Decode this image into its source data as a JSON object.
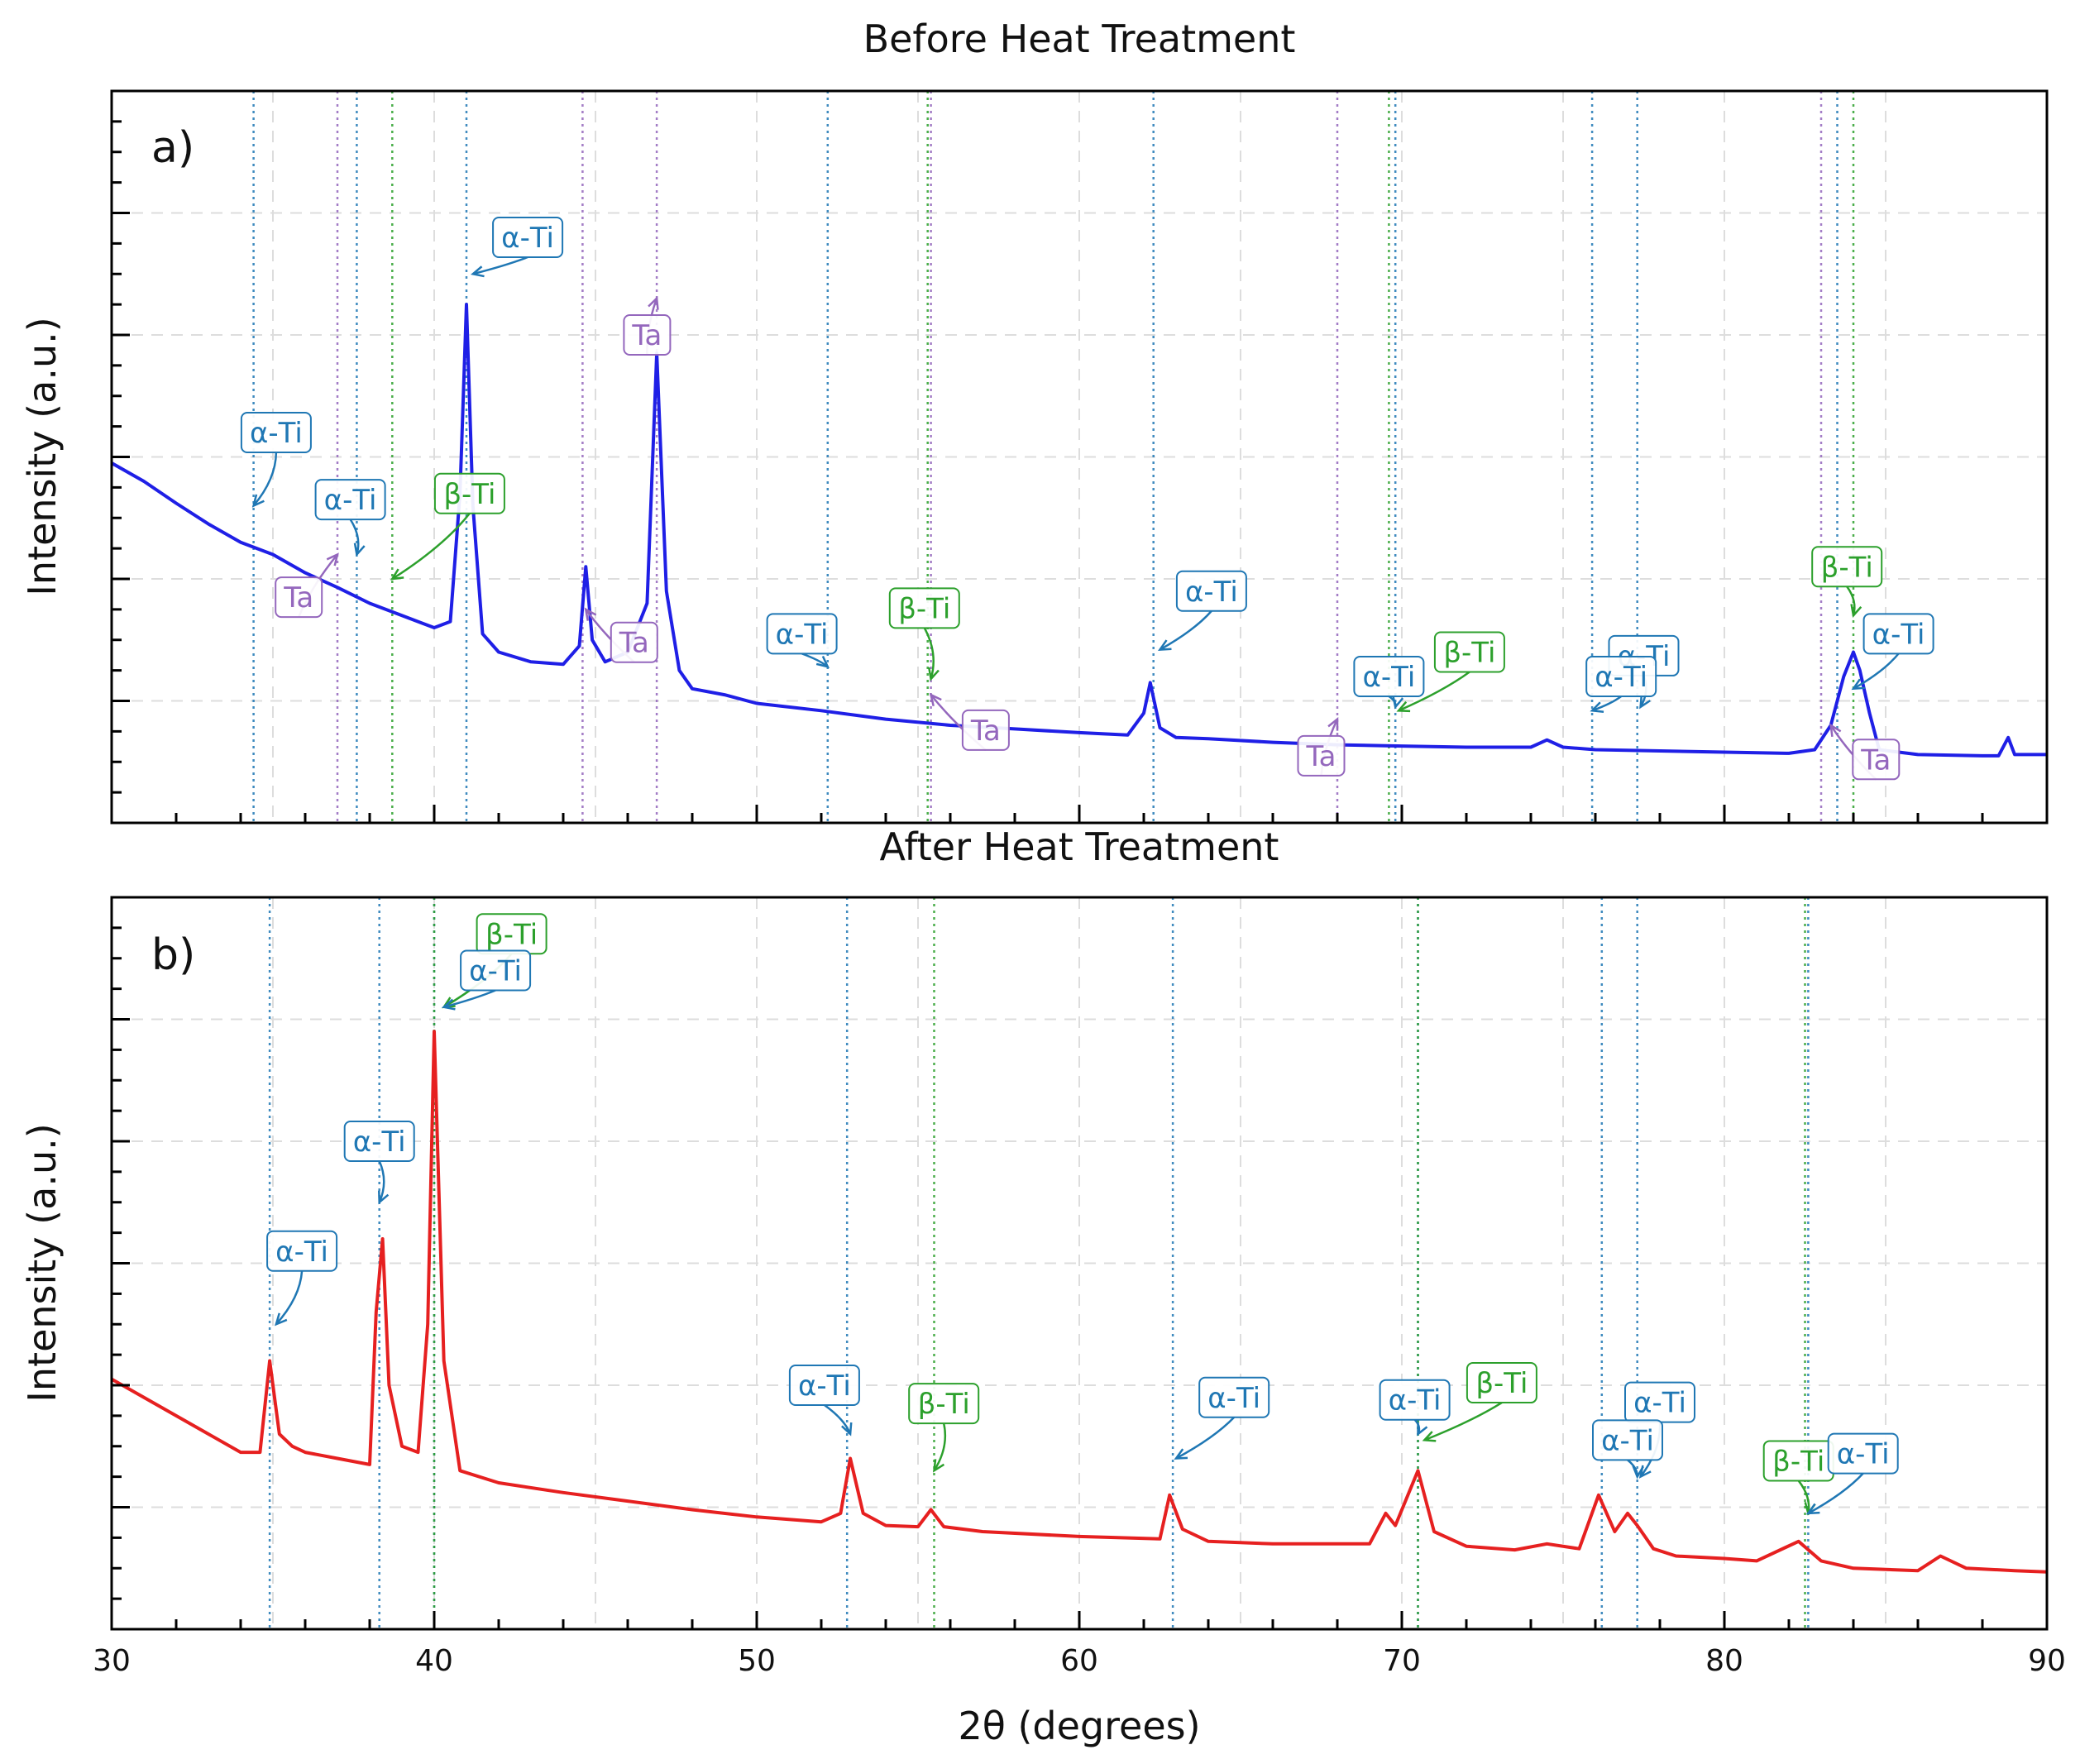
{
  "figure": {
    "xlabel": "2θ (degrees)"
  },
  "colors": {
    "alpha": "#1f77b4",
    "beta": "#2ca02c",
    "ta": "#9467bd",
    "before": "#1f1fe6",
    "after": "#e62020"
  },
  "chart_data": [
    {
      "type": "line",
      "panel_label": "a)",
      "title": "Before Heat Treatment",
      "xlabel": "",
      "ylabel": "Intensity (a.u.)",
      "xlim": [
        30,
        90
      ],
      "ylim": [
        0,
        6
      ],
      "grid": true,
      "series": [
        {
          "color": "#1f1fe6",
          "x": [
            30,
            31,
            32,
            33,
            34,
            35,
            36,
            37,
            38,
            39,
            40,
            40.5,
            40.8,
            41,
            41.2,
            41.5,
            42,
            43,
            44,
            44.5,
            44.7,
            44.9,
            45.3,
            46,
            46.6,
            46.9,
            47.2,
            47.6,
            48,
            49,
            50,
            52,
            54,
            56,
            58,
            60,
            61.5,
            62,
            62.2,
            62.5,
            63,
            64,
            66,
            68,
            70,
            72,
            74,
            74.5,
            75,
            76,
            78,
            80,
            82,
            82.8,
            83.3,
            83.7,
            84,
            84.2,
            84.5,
            84.8,
            86,
            88,
            88.5,
            88.8,
            89,
            90
          ],
          "y": [
            2.95,
            2.8,
            2.62,
            2.45,
            2.3,
            2.2,
            2.05,
            1.93,
            1.8,
            1.7,
            1.6,
            1.65,
            2.7,
            4.25,
            2.6,
            1.55,
            1.4,
            1.32,
            1.3,
            1.45,
            2.1,
            1.5,
            1.32,
            1.4,
            1.8,
            3.85,
            1.9,
            1.25,
            1.1,
            1.05,
            0.98,
            0.92,
            0.85,
            0.8,
            0.77,
            0.74,
            0.72,
            0.9,
            1.15,
            0.78,
            0.7,
            0.69,
            0.66,
            0.64,
            0.63,
            0.62,
            0.62,
            0.68,
            0.62,
            0.6,
            0.59,
            0.58,
            0.57,
            0.6,
            0.8,
            1.2,
            1.4,
            1.25,
            0.9,
            0.6,
            0.56,
            0.55,
            0.55,
            0.7,
            0.56,
            0.56
          ]
        }
      ],
      "reference_lines": {
        "alpha": [
          34.4,
          37.6,
          41.0,
          52.2,
          62.3,
          69.8,
          75.9,
          77.3,
          83.5
        ],
        "beta": [
          38.7,
          55.3,
          69.6,
          84.0
        ],
        "ta": [
          37.0,
          44.6,
          46.9,
          55.4,
          68.0,
          83.0
        ]
      },
      "annotations": [
        {
          "text": "α-Ti",
          "phase": "alpha",
          "x": 34.4,
          "y": 2.6,
          "tx": 35.1,
          "ty": 3.2
        },
        {
          "text": "α-Ti",
          "phase": "alpha",
          "x": 37.6,
          "y": 2.2,
          "tx": 37.4,
          "ty": 2.65
        },
        {
          "text": "Ta",
          "phase": "ta",
          "x": 37.0,
          "y": 2.2,
          "tx": 35.8,
          "ty": 1.85
        },
        {
          "text": "β-Ti",
          "phase": "beta",
          "x": 38.7,
          "y": 2.0,
          "tx": 41.1,
          "ty": 2.7
        },
        {
          "text": "α-Ti",
          "phase": "alpha",
          "x": 41.2,
          "y": 4.5,
          "tx": 42.9,
          "ty": 4.8
        },
        {
          "text": "Ta",
          "phase": "ta",
          "x": 46.9,
          "y": 4.3,
          "tx": 46.6,
          "ty": 4.0
        },
        {
          "text": "Ta",
          "phase": "ta",
          "x": 44.7,
          "y": 1.75,
          "tx": 46.2,
          "ty": 1.48
        },
        {
          "text": "α-Ti",
          "phase": "alpha",
          "x": 52.2,
          "y": 1.28,
          "tx": 51.4,
          "ty": 1.55
        },
        {
          "text": "β-Ti",
          "phase": "beta",
          "x": 55.4,
          "y": 1.18,
          "tx": 55.2,
          "ty": 1.76
        },
        {
          "text": "Ta",
          "phase": "ta",
          "x": 55.4,
          "y": 1.05,
          "tx": 57.1,
          "ty": 0.76
        },
        {
          "text": "α-Ti",
          "phase": "alpha",
          "x": 62.5,
          "y": 1.42,
          "tx": 64.1,
          "ty": 1.9
        },
        {
          "text": "Ta",
          "phase": "ta",
          "x": 68.0,
          "y": 0.85,
          "tx": 67.5,
          "ty": 0.55
        },
        {
          "text": "α-Ti",
          "phase": "alpha",
          "x": 69.8,
          "y": 0.95,
          "tx": 69.6,
          "ty": 1.2
        },
        {
          "text": "β-Ti",
          "phase": "beta",
          "x": 69.9,
          "y": 0.92,
          "tx": 72.1,
          "ty": 1.4
        },
        {
          "text": "α-Ti",
          "phase": "alpha",
          "x": 77.4,
          "y": 0.95,
          "tx": 77.5,
          "ty": 1.37
        },
        {
          "text": "α-Ti",
          "phase": "alpha",
          "x": 75.9,
          "y": 0.92,
          "tx": 76.8,
          "ty": 1.2
        },
        {
          "text": "β-Ti",
          "phase": "beta",
          "x": 84.0,
          "y": 1.7,
          "tx": 83.8,
          "ty": 2.1
        },
        {
          "text": "α-Ti",
          "phase": "alpha",
          "x": 84.0,
          "y": 1.1,
          "tx": 85.4,
          "ty": 1.55
        },
        {
          "text": "Ta",
          "phase": "ta",
          "x": 83.3,
          "y": 0.8,
          "tx": 84.7,
          "ty": 0.52
        }
      ]
    },
    {
      "type": "line",
      "panel_label": "b)",
      "title": "After Heat Treatment",
      "xlabel": "2θ (degrees)",
      "ylabel": "Intensity (a.u.)",
      "xlim": [
        30,
        90
      ],
      "ylim": [
        0,
        6
      ],
      "grid": true,
      "xticks": [
        30,
        40,
        50,
        60,
        70,
        80,
        90
      ],
      "series": [
        {
          "color": "#e62020",
          "x": [
            30,
            31,
            32,
            33,
            34,
            34.6,
            34.9,
            35.2,
            35.6,
            36,
            37,
            38,
            38.2,
            38.4,
            38.6,
            39,
            39.5,
            39.8,
            40.0,
            40.3,
            40.8,
            42,
            44,
            46,
            48,
            50,
            52,
            52.6,
            52.9,
            53.3,
            54,
            55,
            55.4,
            55.8,
            57,
            60,
            62.5,
            62.8,
            63.2,
            64,
            66,
            69,
            69.5,
            69.8,
            70.5,
            71,
            72,
            73.5,
            74.5,
            75.5,
            76.1,
            76.6,
            77.0,
            77.3,
            77.8,
            78.5,
            80,
            81,
            82.3,
            83,
            84,
            86,
            86.7,
            87.5,
            89,
            90
          ],
          "y": [
            2.05,
            1.9,
            1.75,
            1.6,
            1.45,
            1.45,
            2.2,
            1.6,
            1.5,
            1.45,
            1.4,
            1.35,
            2.6,
            3.2,
            2.0,
            1.5,
            1.45,
            2.5,
            4.9,
            2.2,
            1.3,
            1.2,
            1.12,
            1.05,
            0.98,
            0.92,
            0.88,
            0.95,
            1.4,
            0.95,
            0.85,
            0.84,
            0.98,
            0.84,
            0.8,
            0.76,
            0.74,
            1.1,
            0.82,
            0.72,
            0.7,
            0.7,
            0.95,
            0.85,
            1.3,
            0.8,
            0.68,
            0.65,
            0.7,
            0.66,
            1.1,
            0.8,
            0.95,
            0.85,
            0.66,
            0.6,
            0.58,
            0.56,
            0.72,
            0.56,
            0.5,
            0.48,
            0.6,
            0.5,
            0.48,
            0.47
          ]
        }
      ],
      "reference_lines": {
        "alpha": [
          34.9,
          38.3,
          40.0,
          52.8,
          62.9,
          70.5,
          76.2,
          77.3,
          82.6
        ],
        "beta": [
          40.0,
          55.5,
          70.5,
          82.5
        ]
      },
      "annotations": [
        {
          "text": "β-Ti",
          "phase": "beta",
          "x": 40.3,
          "y": 5.1,
          "tx": 42.4,
          "ty": 5.7
        },
        {
          "text": "α-Ti",
          "phase": "alpha",
          "x": 40.3,
          "y": 5.1,
          "tx": 41.9,
          "ty": 5.4
        },
        {
          "text": "α-Ti",
          "phase": "alpha",
          "x": 38.3,
          "y": 3.5,
          "tx": 38.3,
          "ty": 4.0
        },
        {
          "text": "α-Ti",
          "phase": "alpha",
          "x": 35.1,
          "y": 2.5,
          "tx": 35.9,
          "ty": 3.1
        },
        {
          "text": "α-Ti",
          "phase": "alpha",
          "x": 52.9,
          "y": 1.6,
          "tx": 52.1,
          "ty": 2.0
        },
        {
          "text": "β-Ti",
          "phase": "beta",
          "x": 55.5,
          "y": 1.3,
          "tx": 55.8,
          "ty": 1.85
        },
        {
          "text": "α-Ti",
          "phase": "alpha",
          "x": 63.0,
          "y": 1.4,
          "tx": 64.8,
          "ty": 1.9
        },
        {
          "text": "α-Ti",
          "phase": "alpha",
          "x": 70.5,
          "y": 1.6,
          "tx": 70.4,
          "ty": 1.88
        },
        {
          "text": "β-Ti",
          "phase": "beta",
          "x": 70.7,
          "y": 1.55,
          "tx": 73.1,
          "ty": 2.02
        },
        {
          "text": "α-Ti",
          "phase": "alpha",
          "x": 77.4,
          "y": 1.25,
          "tx": 78.0,
          "ty": 1.86
        },
        {
          "text": "α-Ti",
          "phase": "alpha",
          "x": 77.3,
          "y": 1.25,
          "tx": 77.0,
          "ty": 1.55
        },
        {
          "text": "β-Ti",
          "phase": "beta",
          "x": 82.6,
          "y": 0.95,
          "tx": 82.3,
          "ty": 1.38
        },
        {
          "text": "α-Ti",
          "phase": "alpha",
          "x": 82.6,
          "y": 0.95,
          "tx": 84.3,
          "ty": 1.44
        }
      ]
    }
  ]
}
